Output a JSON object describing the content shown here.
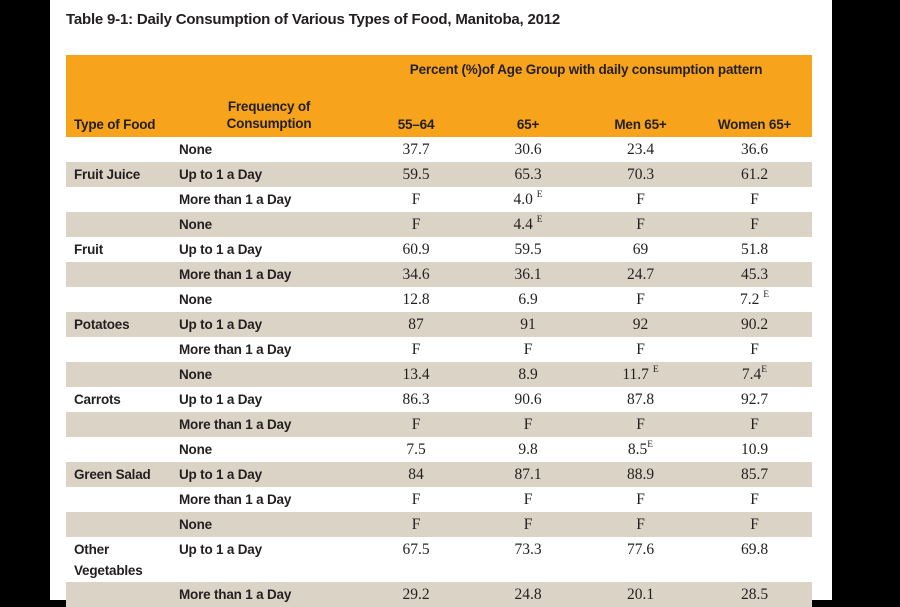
{
  "title": "Table 9-1: Daily Consumption of Various Types of Food, Manitoba, 2012",
  "table": {
    "header": {
      "food": "Type of Food",
      "frequency_line1": "Frequency of",
      "frequency_line2": "Consumption",
      "span": "Percent (%)of Age Group with daily consumption pattern",
      "columns": [
        "55–64",
        "65+",
        "Men 65+",
        "Women 65+"
      ]
    },
    "rows": [
      {
        "food": "",
        "frequency": "None",
        "values": [
          "37.7",
          "30.6",
          "23.4",
          "36.6"
        ]
      },
      {
        "food": "Fruit Juice",
        "frequency": "Up to 1 a Day",
        "values": [
          "59.5",
          "65.3",
          "70.3",
          "61.2"
        ]
      },
      {
        "food": "",
        "frequency": "More than 1 a Day",
        "values": [
          "F",
          "4.0 ^E",
          "F",
          "F"
        ]
      },
      {
        "food": "",
        "frequency": "None",
        "values": [
          "F",
          "4.4 ^E",
          "F",
          "F"
        ]
      },
      {
        "food": "Fruit",
        "frequency": "Up to 1 a Day",
        "values": [
          "60.9",
          "59.5",
          "69",
          "51.8"
        ]
      },
      {
        "food": "",
        "frequency": "More than 1 a Day",
        "values": [
          "34.6",
          "36.1",
          "24.7",
          "45.3"
        ]
      },
      {
        "food": "",
        "frequency": "None",
        "values": [
          "12.8",
          "6.9",
          "F",
          "7.2 ^E"
        ]
      },
      {
        "food": "Potatoes",
        "frequency": "Up to 1 a Day",
        "values": [
          "87",
          "91",
          "92",
          "90.2"
        ]
      },
      {
        "food": "",
        "frequency": "More than 1 a Day",
        "values": [
          "F",
          "F",
          "F",
          "F"
        ]
      },
      {
        "food": "",
        "frequency": "None",
        "values": [
          "13.4",
          "8.9",
          "11.7 ^E",
          "7.4^E"
        ]
      },
      {
        "food": "Carrots",
        "frequency": "Up to 1 a Day",
        "values": [
          "86.3",
          "90.6",
          "87.8",
          "92.7"
        ]
      },
      {
        "food": "",
        "frequency": "More than 1 a Day",
        "values": [
          "F",
          "F",
          "F",
          "F"
        ]
      },
      {
        "food": "",
        "frequency": "None",
        "values": [
          "7.5",
          "9.8",
          "8.5^E",
          "10.9"
        ]
      },
      {
        "food": "Green Salad",
        "frequency": "Up to 1 a Day",
        "values": [
          "84",
          "87.1",
          "88.9",
          "85.7"
        ]
      },
      {
        "food": "",
        "frequency": "More than 1 a Day",
        "values": [
          "F",
          "F",
          "F",
          "F"
        ]
      },
      {
        "food": "",
        "frequency": "None",
        "values": [
          "F",
          "F",
          "F",
          "F"
        ]
      },
      {
        "food": "Other Vegetables",
        "frequency": "Up to 1 a Day",
        "values": [
          "67.5",
          "73.3",
          "77.6",
          "69.8"
        ]
      },
      {
        "food": "",
        "frequency": "More than 1 a Day",
        "values": [
          "29.2",
          "24.8",
          "20.1",
          "28.5"
        ]
      }
    ]
  },
  "colors": {
    "header_bg": "#f7a41c",
    "stripe_bg": "#dbd4c6",
    "text": "#231f20",
    "letterbox": "#000000",
    "canvas_bg": "#ffffff"
  }
}
